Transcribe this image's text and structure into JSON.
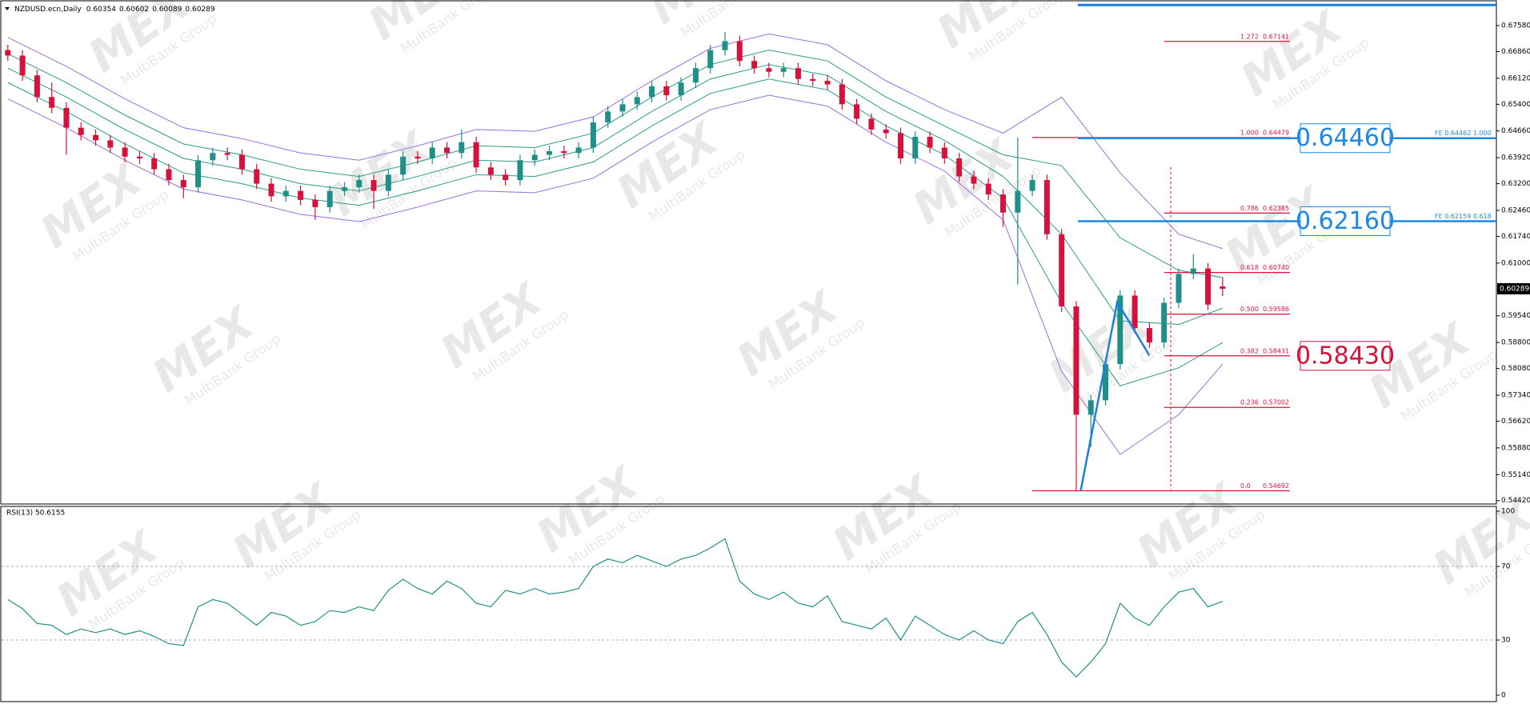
{
  "chart_data": [
    {
      "type": "candlestick",
      "title": "NZDUSD.ecn,Daily",
      "open": [
        0.669,
        0.6675,
        0.662,
        0.656,
        0.653,
        0.6475,
        0.6455,
        0.644,
        0.642,
        0.6395,
        0.639,
        0.636,
        0.633,
        0.631,
        0.6385,
        0.6405,
        0.64,
        0.636,
        0.632,
        0.6285,
        0.63,
        0.6275,
        0.6255,
        0.63,
        0.631,
        0.633,
        0.63,
        0.6345,
        0.6395,
        0.639,
        0.642,
        0.6405,
        0.6435,
        0.6365,
        0.6345,
        0.633,
        0.6385,
        0.64,
        0.641,
        0.6405,
        0.642,
        0.649,
        0.652,
        0.654,
        0.656,
        0.659,
        0.6565,
        0.66,
        0.664,
        0.669,
        0.6715,
        0.666,
        0.664,
        0.663,
        0.664,
        0.661,
        0.6605,
        0.6595,
        0.654,
        0.65,
        0.647,
        0.646,
        0.639,
        0.645,
        0.642,
        0.639,
        0.634,
        0.632,
        0.629,
        0.624,
        0.63,
        0.633,
        0.618,
        0.598,
        0.568,
        0.572,
        0.582,
        0.601,
        0.592,
        0.588,
        0.599,
        0.607,
        0.6085,
        0.60354
      ],
      "high": [
        0.6705,
        0.669,
        0.6635,
        0.66,
        0.6545,
        0.649,
        0.647,
        0.6455,
        0.6435,
        0.641,
        0.6405,
        0.6375,
        0.6345,
        0.64,
        0.642,
        0.642,
        0.6415,
        0.6375,
        0.6335,
        0.6315,
        0.6315,
        0.629,
        0.6315,
        0.6325,
        0.6345,
        0.6345,
        0.636,
        0.641,
        0.641,
        0.6435,
        0.6435,
        0.647,
        0.645,
        0.638,
        0.636,
        0.64,
        0.6415,
        0.6425,
        0.6425,
        0.6435,
        0.6505,
        0.6535,
        0.6555,
        0.6575,
        0.6605,
        0.6605,
        0.6615,
        0.6655,
        0.6705,
        0.674,
        0.673,
        0.6675,
        0.6655,
        0.6655,
        0.6655,
        0.6625,
        0.662,
        0.661,
        0.6555,
        0.6515,
        0.6485,
        0.6475,
        0.6465,
        0.6465,
        0.6435,
        0.6405,
        0.6355,
        0.6335,
        0.6305,
        0.6448,
        0.6345,
        0.6345,
        0.6195,
        0.5995,
        0.5735,
        0.5835,
        0.6025,
        0.6025,
        0.5935,
        0.6005,
        0.6085,
        0.6125,
        0.61,
        0.60602
      ],
      "low": [
        0.666,
        0.6605,
        0.6545,
        0.6515,
        0.64,
        0.644,
        0.6425,
        0.6405,
        0.638,
        0.6375,
        0.6345,
        0.6315,
        0.628,
        0.6295,
        0.637,
        0.6385,
        0.6345,
        0.6305,
        0.627,
        0.627,
        0.626,
        0.622,
        0.624,
        0.6285,
        0.6295,
        0.625,
        0.6285,
        0.633,
        0.6375,
        0.6375,
        0.639,
        0.639,
        0.635,
        0.633,
        0.6315,
        0.6315,
        0.637,
        0.6385,
        0.639,
        0.639,
        0.6405,
        0.6475,
        0.6505,
        0.6525,
        0.6545,
        0.655,
        0.655,
        0.6585,
        0.6625,
        0.6675,
        0.6645,
        0.6625,
        0.6615,
        0.6615,
        0.6595,
        0.659,
        0.658,
        0.6525,
        0.6485,
        0.6455,
        0.6445,
        0.6375,
        0.6375,
        0.6405,
        0.6375,
        0.6325,
        0.6305,
        0.6275,
        0.62,
        0.604,
        0.6285,
        0.6165,
        0.5965,
        0.5469,
        0.559,
        0.5705,
        0.5805,
        0.5905,
        0.5865,
        0.5865,
        0.5975,
        0.6055,
        0.597,
        0.60089
      ],
      "close": [
        0.6675,
        0.662,
        0.656,
        0.653,
        0.6475,
        0.6455,
        0.644,
        0.642,
        0.6395,
        0.639,
        0.636,
        0.633,
        0.631,
        0.6385,
        0.6405,
        0.64,
        0.636,
        0.632,
        0.6285,
        0.63,
        0.6275,
        0.6255,
        0.63,
        0.631,
        0.633,
        0.63,
        0.6345,
        0.6395,
        0.639,
        0.642,
        0.6405,
        0.6435,
        0.6365,
        0.6345,
        0.633,
        0.6385,
        0.64,
        0.641,
        0.6405,
        0.642,
        0.649,
        0.652,
        0.654,
        0.656,
        0.659,
        0.6565,
        0.66,
        0.664,
        0.669,
        0.6715,
        0.666,
        0.664,
        0.663,
        0.664,
        0.661,
        0.6605,
        0.6595,
        0.654,
        0.65,
        0.647,
        0.646,
        0.639,
        0.645,
        0.642,
        0.639,
        0.634,
        0.632,
        0.629,
        0.624,
        0.63,
        0.633,
        0.618,
        0.598,
        0.568,
        0.572,
        0.582,
        0.601,
        0.592,
        0.588,
        0.599,
        0.607,
        0.6085,
        0.5985,
        0.60289
      ],
      "up_color": "#1f8f88",
      "down_color": "#d4123c",
      "ylim": [
        0.5437,
        0.682
      ],
      "yticks": [
        {
          "value": 0.6758,
          "label": "0.67580"
        },
        {
          "value": 0.6686,
          "label": "0.66860"
        },
        {
          "value": 0.6612,
          "label": "0.66120"
        },
        {
          "value": 0.654,
          "label": "0.65400"
        },
        {
          "value": 0.6466,
          "label": "0.64660"
        },
        {
          "value": 0.6392,
          "label": "0.63920"
        },
        {
          "value": 0.632,
          "label": "0.63200"
        },
        {
          "value": 0.6246,
          "label": "0.62460"
        },
        {
          "value": 0.6174,
          "label": "0.61740"
        },
        {
          "value": 0.61,
          "label": "0.61000"
        },
        {
          "value": 0.5954,
          "label": "0.59540"
        },
        {
          "value": 0.588,
          "label": "0.58800"
        },
        {
          "value": 0.5808,
          "label": "0.58080"
        },
        {
          "value": 0.5734,
          "label": "0.57340"
        },
        {
          "value": 0.5662,
          "label": "0.56620"
        },
        {
          "value": 0.5588,
          "label": "0.55880"
        },
        {
          "value": 0.5514,
          "label": "0.55140"
        },
        {
          "value": 0.5442,
          "label": "0.54420"
        }
      ],
      "bands": {
        "x": [
          0,
          4,
          8,
          12,
          16,
          20,
          24,
          28,
          32,
          36,
          40,
          44,
          48,
          52,
          56,
          60,
          64,
          68,
          72,
          76,
          80,
          83
        ],
        "series": [
          {
            "color": "#9a6fd8",
            "values": [
              0.6725,
              0.6645,
              0.6555,
              0.6475,
              0.6445,
              0.6405,
              0.6385,
              0.6425,
              0.647,
              0.6465,
              0.6505,
              0.6605,
              0.6695,
              0.6735,
              0.6705,
              0.6605,
              0.6525,
              0.646,
              0.656,
              0.635,
              0.618,
              0.614
            ]
          },
          {
            "color": "#2a9a8a",
            "values": [
              0.668,
              0.66,
              0.651,
              0.643,
              0.64,
              0.636,
              0.634,
              0.638,
              0.6425,
              0.642,
              0.646,
              0.656,
              0.665,
              0.669,
              0.666,
              0.656,
              0.648,
              0.64,
              0.637,
              0.617,
              0.608,
              0.606
            ]
          },
          {
            "color": "#2a9a8a",
            "values": [
              0.664,
              0.656,
              0.647,
              0.639,
              0.636,
              0.632,
              0.63,
              0.634,
              0.6385,
              0.638,
              0.642,
              0.652,
              0.661,
              0.665,
              0.662,
              0.652,
              0.644,
              0.634,
              0.618,
              0.594,
              0.593,
              0.5975
            ]
          },
          {
            "color": "#2a9a8a",
            "values": [
              0.66,
              0.652,
              0.643,
              0.635,
              0.632,
              0.628,
              0.626,
              0.63,
              0.6345,
              0.634,
              0.638,
              0.648,
              0.657,
              0.661,
              0.658,
              0.648,
              0.64,
              0.628,
              0.599,
              0.576,
              0.581,
              0.588
            ]
          },
          {
            "color": "#9a6fd8",
            "values": [
              0.6555,
              0.6475,
              0.6385,
              0.6305,
              0.6275,
              0.6235,
              0.6215,
              0.6255,
              0.63,
              0.6295,
              0.6335,
              0.6435,
              0.6525,
              0.6565,
              0.6535,
              0.6435,
              0.6355,
              0.622,
              0.58,
              0.557,
              0.568,
              0.582
            ]
          }
        ]
      },
      "fibonacci": {
        "color": "#e0103a",
        "levels": [
          {
            "ratio": "1.272",
            "value": 0.67141,
            "label": "0.67141"
          },
          {
            "ratio": "1.000",
            "value": 0.64479,
            "label": "0.64479"
          },
          {
            "ratio": "0.786",
            "value": 0.62385,
            "label": "0.62385"
          },
          {
            "ratio": "0.618",
            "value": 0.6074,
            "label": "0.60740"
          },
          {
            "ratio": "0.500",
            "value": 0.59586,
            "label": "0.59586"
          },
          {
            "ratio": "0.382",
            "value": 0.58431,
            "label": "0.58431"
          },
          {
            "ratio": "0.236",
            "value": 0.57002,
            "label": "0.57002"
          },
          {
            "ratio": "0.0",
            "value": 0.54692,
            "label": "0.54692"
          }
        ]
      },
      "expansion": {
        "color": "#1e7fe0",
        "x": [
          73.3,
          75.8,
          78
        ],
        "values": [
          0.54692,
          0.5992,
          0.5844
        ]
      },
      "top_line": {
        "color": "#1e7fe0",
        "value": 0.6815
      },
      "targets": [
        {
          "color": "#1e88e5",
          "value": 0.6446,
          "label": "0.64460",
          "note": "FE 0.64462  1.000"
        },
        {
          "color": "#1e88e5",
          "value": 0.6216,
          "label": "0.62160",
          "note": "FE 0.62159  0.618"
        },
        {
          "color": "#d4123c",
          "value": 0.5843,
          "label": "0.58430"
        }
      ]
    },
    {
      "type": "line",
      "title": "RSI(13) 50.6155",
      "color": "#1f8f88",
      "values": [
        52,
        47,
        39,
        38,
        33,
        36,
        34,
        36,
        33,
        35,
        32,
        28,
        27,
        48,
        52,
        50,
        44,
        38,
        45,
        43,
        38,
        40,
        46,
        45,
        48,
        46,
        57,
        63,
        58,
        55,
        62,
        58,
        50,
        48,
        57,
        55,
        58,
        55,
        56,
        58,
        70,
        74,
        72,
        76,
        73,
        70,
        74,
        76,
        80,
        85,
        62,
        55,
        52,
        56,
        50,
        48,
        54,
        40,
        38,
        36,
        42,
        30,
        43,
        38,
        33,
        30,
        35,
        30,
        28,
        40,
        45,
        33,
        18,
        10,
        18,
        28,
        50,
        42,
        38,
        48,
        56,
        58,
        48,
        51
      ],
      "ylim": [
        0,
        100
      ],
      "yticks": [
        100,
        70,
        30,
        0
      ]
    }
  ],
  "watermark": {
    "logo": "MEX",
    "text": "MultiBank Group"
  }
}
